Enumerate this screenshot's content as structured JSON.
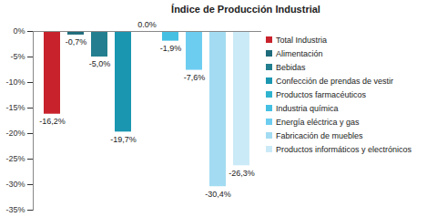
{
  "chart_data": {
    "type": "bar",
    "title": "Índice de Producción Industrial",
    "categories": [
      "Total Industria",
      "Alimentación",
      "Bebidas",
      "Confección de prendas de vestir",
      "Productos farmacéuticos",
      "Industria química",
      "Energía eléctrica y gas",
      "Fabricación de muebles",
      "Productos informáticos y electrónicos"
    ],
    "values": [
      -16.2,
      -0.7,
      -5.0,
      -19.7,
      0.0,
      -1.9,
      -7.6,
      -30.4,
      -26.3
    ],
    "value_labels": [
      "-16,2%",
      "-0,7%",
      "-5,0%",
      "-19,7%",
      "0.0%",
      "-1,9%",
      "-7,6%",
      "-30,4%",
      "-26,3%"
    ],
    "colors": [
      "#c8232c",
      "#1e6b7b",
      "#237f8f",
      "#1a96b0",
      "#2fb4cf",
      "#45c0e3",
      "#6dcdf0",
      "#a3dcf2",
      "#cbeaf7"
    ],
    "ylim": [
      -35,
      0
    ],
    "yticks": [
      {
        "value": 0,
        "label": "0%"
      },
      {
        "value": -5,
        "label": "-5%"
      },
      {
        "value": -10,
        "label": "-10%"
      },
      {
        "value": -15,
        "label": "-15%"
      },
      {
        "value": -20,
        "label": "-20%"
      },
      {
        "value": -25,
        "label": "-25%"
      },
      {
        "value": -30,
        "label": "-30%"
      },
      {
        "value": -35,
        "label": "-35%"
      }
    ],
    "grid": false,
    "data_labels": true,
    "tick_labels": "y",
    "legend": "right"
  }
}
